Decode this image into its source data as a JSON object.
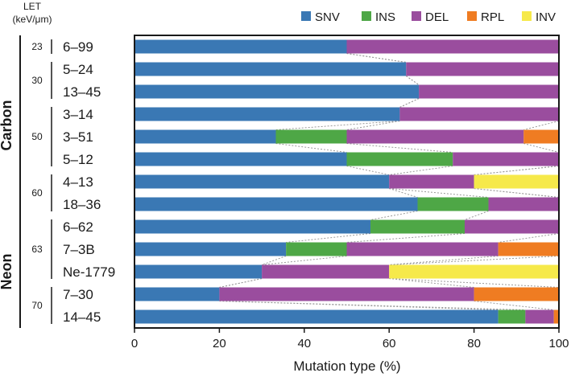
{
  "chart_data": {
    "type": "bar",
    "orientation": "horizontal",
    "stacked": true,
    "xlabel": "Mutation type (%)",
    "xlim": [
      0,
      100
    ],
    "xticks": [
      0,
      20,
      40,
      60,
      80,
      100
    ],
    "let_header": [
      "LET",
      "(keV/μm)"
    ],
    "legend_position": "top-right",
    "types": [
      {
        "name": "SNV",
        "color": "#3a78b4"
      },
      {
        "name": "INS",
        "color": "#4ea746"
      },
      {
        "name": "DEL",
        "color": "#9a4d9e"
      },
      {
        "name": "RPL",
        "color": "#ef7c22"
      },
      {
        "name": "INV",
        "color": "#f6e94a"
      }
    ],
    "categories": [
      "6–99",
      "5–24",
      "13–45",
      "3–14",
      "3–51",
      "5–12",
      "4–13",
      "18–36",
      "6–62",
      "7–3B",
      "Ne-1779",
      "7–30",
      "14–45"
    ],
    "series": [
      {
        "name": "SNV",
        "values": [
          50,
          64,
          67,
          62.5,
          33.3,
          50,
          60,
          66.7,
          55.6,
          35.7,
          30,
          20,
          85.7
        ]
      },
      {
        "name": "INS",
        "values": [
          0,
          0,
          0,
          0,
          16.7,
          25,
          0,
          16.7,
          22.2,
          14.3,
          0,
          0,
          6.4
        ]
      },
      {
        "name": "DEL",
        "values": [
          50,
          36,
          33,
          37.5,
          41.7,
          25,
          20,
          16.6,
          22.2,
          35.7,
          30,
          60,
          6.7
        ]
      },
      {
        "name": "RPL",
        "values": [
          0,
          0,
          0,
          0,
          8.3,
          0,
          0,
          0,
          0,
          14.3,
          0,
          20,
          1.2
        ]
      },
      {
        "name": "INV",
        "values": [
          0,
          0,
          0,
          0,
          0,
          0,
          20,
          0,
          0,
          0,
          40,
          0,
          0
        ]
      }
    ],
    "let_groups": [
      {
        "label": "23",
        "from": 0,
        "to": 0
      },
      {
        "label": "30",
        "from": 1,
        "to": 2
      },
      {
        "label": "50",
        "from": 3,
        "to": 5
      },
      {
        "label": "60",
        "from": 6,
        "to": 7
      },
      {
        "label": "63",
        "from": 8,
        "to": 10
      },
      {
        "label": "70",
        "from": 11,
        "to": 12
      }
    ],
    "ion_groups": [
      {
        "label": "Carbon",
        "from": 0,
        "to": 7
      },
      {
        "label": "Neon",
        "from": 8,
        "to": 12
      }
    ]
  }
}
